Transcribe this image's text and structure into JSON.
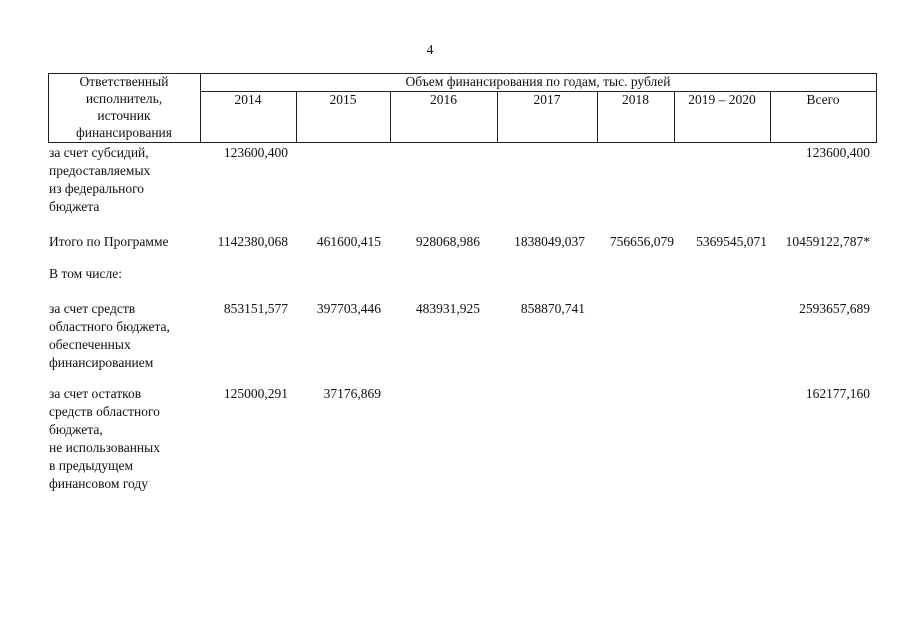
{
  "page_number": "4",
  "table": {
    "header": {
      "first_col": [
        "Ответственный",
        "исполнитель,",
        "источник",
        "финансирования"
      ],
      "group_title": "Объем финансирования по годам, тыс. рублей",
      "columns": [
        "2014",
        "2015",
        "2016",
        "2017",
        "2018",
        "2019 – 2020",
        "Всего"
      ]
    },
    "rows": [
      {
        "label": [
          "за счет субсидий,",
          "предоставляемых",
          "из федерального",
          "бюджета"
        ],
        "values": [
          "123600,400",
          "",
          "",
          "",
          "",
          "",
          "123600,400"
        ]
      },
      {
        "label": [
          "Итого по Программе"
        ],
        "values": [
          "1142380,068",
          "461600,415",
          "928068,986",
          "1838049,037",
          "756656,079",
          "5369545,071",
          "10459122,787*"
        ]
      },
      {
        "label": [
          "В том числе:"
        ],
        "values": [
          "",
          "",
          "",
          "",
          "",
          "",
          ""
        ]
      },
      {
        "label": [
          "за счет средств",
          "областного бюджета,",
          "обеспеченных",
          "финансированием"
        ],
        "values": [
          "853151,577",
          "397703,446",
          "483931,925",
          "858870,741",
          "",
          "",
          "2593657,689"
        ]
      },
      {
        "label": [
          "за счет остатков",
          "средств областного",
          "бюджета,",
          "не использованных",
          "в предыдущем",
          "финансовом году"
        ],
        "values": [
          "125000,291",
          "37176,869",
          "",
          "",
          "",
          "",
          "162177,160"
        ]
      }
    ]
  }
}
